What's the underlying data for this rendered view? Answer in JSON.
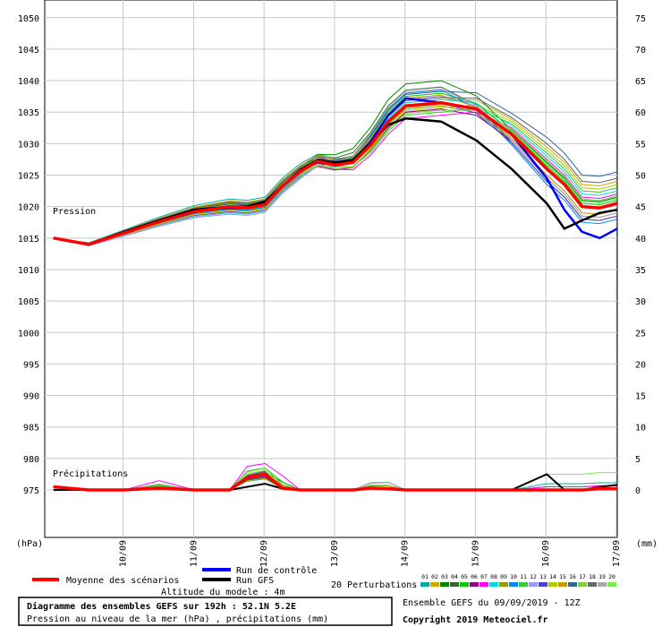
{
  "chart_data": {
    "type": "line",
    "title": "Diagramme des ensembles GEFS sur 192h : 52.1N 5.2E",
    "subtitle": "Pression au niveau de la mer (hPa) , précipitations (mm)",
    "left_axis": {
      "unit": "(hPa)",
      "min": 970,
      "max": 1050,
      "ticks": [
        1050,
        1045,
        1040,
        1035,
        1030,
        1025,
        1020,
        1015,
        1010,
        1005,
        1000,
        995,
        990,
        985,
        980,
        975
      ]
    },
    "right_axis": {
      "unit": "(mm)",
      "ticks": [
        75,
        70,
        65,
        60,
        55,
        50,
        45,
        40,
        35,
        30,
        25,
        20,
        15,
        10,
        5,
        0
      ]
    },
    "x_axis": {
      "ticks": [
        "10/09",
        "11/09",
        "12/09",
        "13/09",
        "14/09",
        "15/09",
        "16/09",
        "17/09"
      ]
    },
    "annotations": {
      "pressure": "Pression",
      "precip": "Précipitations"
    },
    "grid": true,
    "time_steps_h": [
      0,
      12,
      24,
      36,
      48,
      60,
      66,
      72,
      78,
      84,
      90,
      96,
      102,
      108,
      114,
      120,
      132,
      144,
      156,
      168,
      174,
      180,
      186,
      192
    ],
    "pressure_mean": [
      1015,
      1014,
      1015.8,
      1017.6,
      1019.2,
      1020,
      1019.8,
      1020.3,
      1023.3,
      1025.6,
      1027.2,
      1026.6,
      1027,
      1029.8,
      1033.5,
      1036,
      1036.5,
      1035.5,
      1031.5,
      1026,
      1023.5,
      1020,
      1019.8,
      1020.5
    ],
    "pressure_control": [
      1015,
      1014,
      1016,
      1017.8,
      1019.5,
      1019.8,
      1019.8,
      1020.5,
      1023.3,
      1025.8,
      1027,
      1026.6,
      1027.2,
      1030.3,
      1034.5,
      1037.2,
      1036.5,
      1035.6,
      1031.5,
      1024.5,
      1019.5,
      1016,
      1015,
      1016.5
    ],
    "pressure_gfs": [
      1015,
      1014,
      1016,
      1017.8,
      1019.5,
      1020,
      1020,
      1020.8,
      1023.3,
      1025.8,
      1027.4,
      1027,
      1027.4,
      1030,
      1033,
      1034,
      1033.5,
      1030.5,
      1026,
      1020.5,
      1016.5,
      1017.8,
      1019,
      1019.5
    ],
    "precip_mean": [
      0.5,
      0,
      0,
      0.3,
      0,
      0,
      2,
      2.5,
      0.3,
      0,
      0,
      0,
      0,
      0.3,
      0.2,
      0,
      0,
      0,
      0,
      0,
      0,
      0,
      0.2,
      0.2
    ],
    "precip_gfs": [
      0,
      0,
      0,
      0.2,
      0,
      0,
      0.5,
      1,
      0.2,
      0,
      0,
      0,
      0,
      0.3,
      0.1,
      0,
      0,
      0,
      0,
      2.5,
      0,
      0,
      0.5,
      0.8
    ],
    "series_colors": {
      "mean": "#ff0000",
      "control": "#0000ff",
      "gfs": "#000000"
    },
    "perturbations": [
      {
        "name": "01",
        "color": "#00aaaa",
        "p": [
          1.2,
          1,
          0.8
        ],
        "r": [
          0,
          0,
          1
        ]
      },
      {
        "name": "02",
        "color": "#ccaa00",
        "p": [
          -0.5,
          0.5,
          3.5
        ],
        "r": [
          0,
          0.5,
          0
        ]
      },
      {
        "name": "03",
        "color": "#008800",
        "p": [
          0.5,
          3.5,
          1
        ],
        "r": [
          1,
          0,
          0
        ]
      },
      {
        "name": "04",
        "color": "#336633",
        "p": [
          0.3,
          2.5,
          -2
        ],
        "r": [
          0,
          0,
          0.5
        ]
      },
      {
        "name": "05",
        "color": "#00cc00",
        "p": [
          -0.3,
          1.5,
          0.5
        ],
        "r": [
          0.5,
          0.5,
          0
        ]
      },
      {
        "name": "06",
        "color": "#880088",
        "p": [
          -0.8,
          -1,
          -1.5
        ],
        "r": [
          0,
          0,
          0
        ]
      },
      {
        "name": "07",
        "color": "#ff00ff",
        "p": [
          0.2,
          -2,
          1.5
        ],
        "r": [
          2,
          0,
          0.5
        ]
      },
      {
        "name": "08",
        "color": "#00dddd",
        "p": [
          -1,
          0.5,
          2
        ],
        "r": [
          0,
          1,
          0
        ]
      },
      {
        "name": "09",
        "color": "#999900",
        "p": [
          0.6,
          -0.5,
          -1
        ],
        "r": [
          0.5,
          0,
          0
        ]
      },
      {
        "name": "10",
        "color": "#0088ff",
        "p": [
          -0.4,
          2,
          -2.5
        ],
        "r": [
          0,
          0,
          0
        ]
      },
      {
        "name": "11",
        "color": "#33cc33",
        "p": [
          0.8,
          -1.5,
          2.5
        ],
        "r": [
          1,
          0,
          0
        ]
      },
      {
        "name": "12",
        "color": "#9999ff",
        "p": [
          -1.2,
          1,
          0
        ],
        "r": [
          0,
          0,
          0
        ]
      },
      {
        "name": "13",
        "color": "#4444cc",
        "p": [
          0.4,
          0,
          -2
        ],
        "r": [
          0,
          0,
          0
        ]
      },
      {
        "name": "14",
        "color": "#aacc00",
        "p": [
          -0.6,
          -0.8,
          3
        ],
        "r": [
          0,
          0,
          0
        ]
      },
      {
        "name": "15",
        "color": "#cc9900",
        "p": [
          0.9,
          1.2,
          -1
        ],
        "r": [
          0,
          0.5,
          0
        ]
      },
      {
        "name": "16",
        "color": "#336699",
        "p": [
          0.1,
          1.8,
          5
        ],
        "r": [
          0,
          0,
          0
        ]
      },
      {
        "name": "17",
        "color": "#88cc44",
        "p": [
          -0.2,
          -1.2,
          1.2
        ],
        "r": [
          0.5,
          0,
          0
        ]
      },
      {
        "name": "18",
        "color": "#666666",
        "p": [
          0.7,
          0.8,
          4
        ],
        "r": [
          0,
          0,
          0
        ]
      },
      {
        "name": "19",
        "color": "#aaaaaa",
        "p": [
          -0.9,
          2.2,
          -1.5
        ],
        "r": [
          0,
          1,
          0
        ]
      },
      {
        "name": "20",
        "color": "#77ee55",
        "p": [
          0.3,
          -0.3,
          0.8
        ],
        "r": [
          0,
          0,
          2.5
        ]
      }
    ]
  },
  "legend": {
    "mean": "Moyenne des scénarios",
    "control": "Run de contrôle",
    "gfs": "Run GFS",
    "perturbations": "20 Perturbations",
    "altitude": "Altitude du modele : 4m"
  },
  "footer": {
    "title": "Diagramme des ensembles GEFS sur 192h : 52.1N 5.2E",
    "subtitle": "Pression au niveau de la mer (hPa) , précipitations (mm)",
    "run": "Ensemble GEFS du 09/09/2019 - 12Z",
    "copyright": "Copyright 2019 Meteociel.fr"
  }
}
